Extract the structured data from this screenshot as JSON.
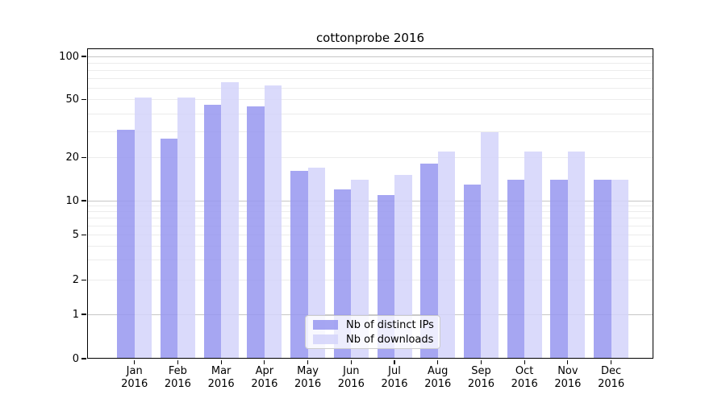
{
  "title": "cottonprobe 2016",
  "colors": {
    "ips": "rgba(150,150,240,0.85)",
    "downloads": "rgba(212,212,250,0.85)",
    "ips_hex": "#a6a6f3",
    "downloads_hex": "#d9d9fb",
    "grid_major": "#c6c6c6",
    "grid_minor": "#ececec",
    "axis": "#000000"
  },
  "legend": {
    "items": [
      {
        "label": "Nb of distinct IPs",
        "key": "ips"
      },
      {
        "label": "Nb of downloads",
        "key": "downloads"
      }
    ]
  },
  "x_axis": {
    "year_label": "2016"
  },
  "chart_data": {
    "type": "bar",
    "title": "cottonprobe 2016",
    "categories": [
      "Jan",
      "Feb",
      "Mar",
      "Apr",
      "May",
      "Jun",
      "Jul",
      "Aug",
      "Sep",
      "Oct",
      "Nov",
      "Dec"
    ],
    "category_second_line": "2016",
    "series": [
      {
        "name": "Nb of distinct IPs",
        "values": [
          31,
          27,
          46,
          45,
          16,
          12,
          11,
          18,
          13,
          14,
          14,
          14
        ]
      },
      {
        "name": "Nb of downloads",
        "values": [
          52,
          52,
          66,
          63,
          17,
          14,
          15,
          22,
          30,
          22,
          22,
          14
        ]
      }
    ],
    "xlabel": "",
    "ylabel": "",
    "yscale": "log above 1, linear 0-1",
    "ylim": [
      0,
      114
    ],
    "ytick_values": [
      100,
      50,
      20,
      10,
      5,
      2,
      1,
      0
    ],
    "ytick_labels": [
      "100",
      "50",
      "20",
      "10",
      "5",
      "2",
      "1",
      "0"
    ],
    "major_grid_values": [
      1,
      10,
      100
    ],
    "minor_grid_values": [
      2,
      3,
      4,
      5,
      6,
      7,
      8,
      9,
      20,
      30,
      40,
      50,
      60,
      70,
      80,
      90
    ],
    "grid": "horizontal",
    "legend_position": "lower center inside"
  }
}
